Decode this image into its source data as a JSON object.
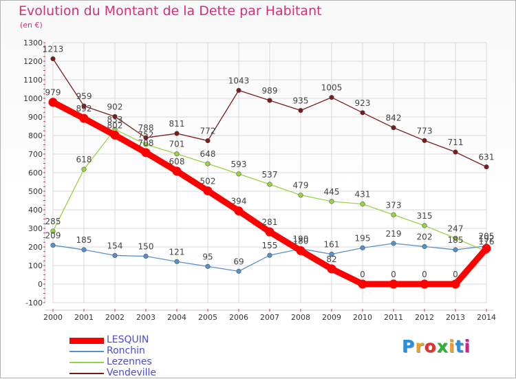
{
  "title": "Evolution du Montant de la Dette par Habitant",
  "subtitle": "(en €)",
  "logo": {
    "text": "Proxiti",
    "letters": [
      "P",
      "r",
      "o",
      "x",
      "i",
      "t",
      "i"
    ],
    "colors": [
      "#2a8fd8",
      "#f0a020",
      "#e03030",
      "#30b030",
      "#f0a020",
      "#2a8fd8",
      "#d02090"
    ]
  },
  "chart_data": {
    "type": "line",
    "title": "Evolution du Montant de la Dette par Habitant",
    "ylabel": "(en €)",
    "x": [
      "2000",
      "2001",
      "2002",
      "2003",
      "2004",
      "2005",
      "2006",
      "2007",
      "2008",
      "2009",
      "2010",
      "2011",
      "2012",
      "2013",
      "2014"
    ],
    "ylim": [
      -100,
      1300
    ],
    "yticks": [
      "-100",
      "0",
      "100",
      "200",
      "300",
      "400",
      "500",
      "600",
      "700",
      "800",
      "900",
      "1000",
      "1100",
      "1200",
      "1300"
    ],
    "grid": true,
    "legend_placement": "bottom-left",
    "series": [
      {
        "name": "Vendeville",
        "color": "#7a1a1a",
        "values": [
          1213,
          959,
          902,
          788,
          811,
          772,
          1043,
          989,
          935,
          1005,
          923,
          842,
          773,
          711,
          631
        ],
        "labels": [
          "1213",
          "959",
          "902",
          "788",
          "811",
          "772",
          "1043",
          "989",
          "935",
          "1005",
          "923",
          "842",
          "773",
          "711",
          "631"
        ]
      },
      {
        "name": "Lezennes",
        "color": "#99d444",
        "values": [
          285,
          618,
          833,
          752,
          701,
          648,
          593,
          537,
          479,
          445,
          431,
          373,
          315,
          247,
          176
        ],
        "labels": [
          "285",
          "618",
          "833",
          "752",
          "701",
          "648",
          "593",
          "537",
          "479",
          "445",
          "431",
          "373",
          "315",
          "247",
          "176"
        ]
      },
      {
        "name": "Ronchin",
        "color": "#5590cc",
        "values": [
          209,
          185,
          154,
          150,
          121,
          95,
          69,
          155,
          190,
          161,
          195,
          219,
          202,
          185,
          205
        ],
        "labels": [
          "209",
          "185",
          "154",
          "150",
          "121",
          "95",
          "69",
          "155",
          "190",
          "161",
          "195",
          "219",
          "202",
          "185",
          "205"
        ]
      },
      {
        "name": "LESQUIN",
        "color": "#ff0000",
        "values": [
          979,
          892,
          802,
          708,
          608,
          502,
          394,
          281,
          180,
          82,
          0,
          0,
          0,
          0,
          192
        ],
        "labels": [
          "979",
          "892",
          "802",
          "708",
          "608",
          "502",
          "394",
          "281",
          "180",
          "82",
          "0",
          "0",
          "0",
          "0",
          "192"
        ]
      }
    ],
    "legend": [
      "LESQUIN",
      "Ronchin",
      "Lezennes",
      "Vendeville"
    ]
  }
}
